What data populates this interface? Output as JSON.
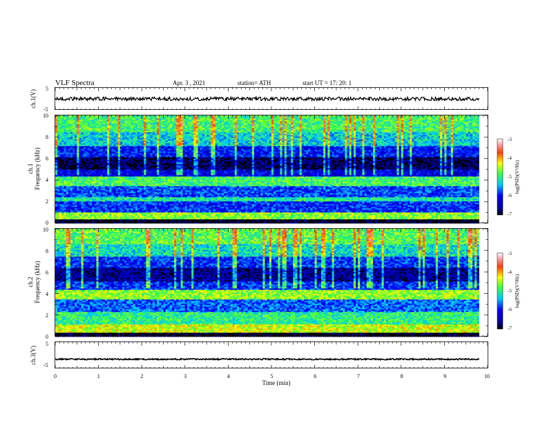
{
  "header": {
    "title": "VLF  Spectra",
    "date": "Apr. 3  , 2021",
    "station": "station= ATH",
    "start": "start  UT  =    17: 20: 1"
  },
  "colorbar": {
    "label": "log(PSD)(V²/Hz)",
    "ticks": [
      "-3",
      "-4",
      "-5",
      "-6",
      "-7"
    ]
  },
  "chart_data": [
    {
      "type": "line",
      "name": "ch.1 waveform",
      "ylabel": "ch.1(V)",
      "ylim": [
        -5,
        5
      ],
      "yticks": [
        "5",
        "-5"
      ],
      "xlim": [
        0,
        10
      ],
      "mean_level_V": 0.0
    },
    {
      "type": "heatmap",
      "ylabel": "ch.1\nFrequency (kHz)",
      "ylim": [
        0,
        10
      ],
      "yticks": [
        "0",
        "2",
        "4",
        "6",
        "8",
        "10"
      ],
      "xlim": [
        0,
        9.8
      ],
      "clim": [
        -7,
        -3
      ],
      "bands_kHz": [
        {
          "f": [
            0,
            0.4
          ],
          "level": -7.0
        },
        {
          "f": [
            0.4,
            1.0
          ],
          "level": -4.6
        },
        {
          "f": [
            1.0,
            2.0
          ],
          "level": -5.9
        },
        {
          "f": [
            2.0,
            2.5
          ],
          "level": -5.1
        },
        {
          "f": [
            2.5,
            3.5
          ],
          "level": -5.8
        },
        {
          "f": [
            3.5,
            4.3
          ],
          "level": -4.9
        },
        {
          "f": [
            4.3,
            5.0
          ],
          "level": -6.2
        },
        {
          "f": [
            5.0,
            6.2
          ],
          "level": -6.8
        },
        {
          "f": [
            6.2,
            7.2
          ],
          "level": -6.0
        },
        {
          "f": [
            7.2,
            8.5
          ],
          "level": -5.3
        },
        {
          "f": [
            8.5,
            10.0
          ],
          "level": -4.9
        }
      ]
    },
    {
      "type": "heatmap",
      "ylabel": "ch.2\nFrequency (kHz)",
      "ylim": [
        0,
        10
      ],
      "yticks": [
        "0",
        "2",
        "4",
        "6",
        "8",
        "10"
      ],
      "xlim": [
        0,
        9.8
      ],
      "clim": [
        -7,
        -3
      ],
      "bands_kHz": [
        {
          "f": [
            0,
            0.4
          ],
          "level": -7.0
        },
        {
          "f": [
            0.4,
            1.1
          ],
          "level": -4.4
        },
        {
          "f": [
            1.1,
            2.3
          ],
          "level": -5.0
        },
        {
          "f": [
            2.3,
            3.4
          ],
          "level": -5.7
        },
        {
          "f": [
            3.4,
            4.3
          ],
          "level": -4.6
        },
        {
          "f": [
            4.3,
            5.1
          ],
          "level": -5.9
        },
        {
          "f": [
            5.1,
            6.4
          ],
          "level": -6.6
        },
        {
          "f": [
            6.4,
            7.4
          ],
          "level": -5.9
        },
        {
          "f": [
            7.4,
            8.6
          ],
          "level": -5.2
        },
        {
          "f": [
            8.6,
            10.0
          ],
          "level": -4.8
        }
      ]
    },
    {
      "type": "line",
      "name": "ch.3 waveform",
      "ylabel": "ch.3(V)",
      "ylim": [
        -5,
        5
      ],
      "yticks": [
        "5",
        "-5"
      ],
      "xlim": [
        0,
        10
      ],
      "mean_level_V": -1.5,
      "xlabel": "Time  (min)",
      "xticks": [
        "0",
        "1",
        "2",
        "3",
        "4",
        "5",
        "6",
        "7",
        "8",
        "9",
        "10"
      ]
    }
  ]
}
